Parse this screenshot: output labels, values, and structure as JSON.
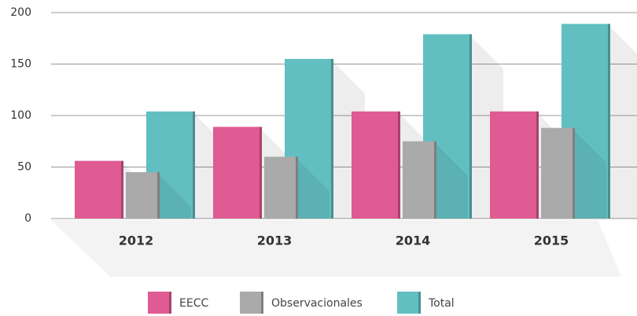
{
  "chart_data": {
    "type": "bar",
    "categories": [
      "2012",
      "2013",
      "2014",
      "2015"
    ],
    "series": [
      {
        "name": "EECC",
        "color": "#e05a93",
        "values": [
          56,
          89,
          104,
          104
        ]
      },
      {
        "name": "Observacionales",
        "color": "#aaaaaa",
        "values": [
          45,
          60,
          75,
          88
        ]
      },
      {
        "name": "Total",
        "color": "#62bfc1",
        "values": [
          104,
          155,
          179,
          189
        ]
      }
    ],
    "ylim": [
      0,
      200
    ],
    "yticks": [
      0,
      50,
      100,
      150,
      200
    ],
    "grid": true,
    "legend": "bottom"
  }
}
